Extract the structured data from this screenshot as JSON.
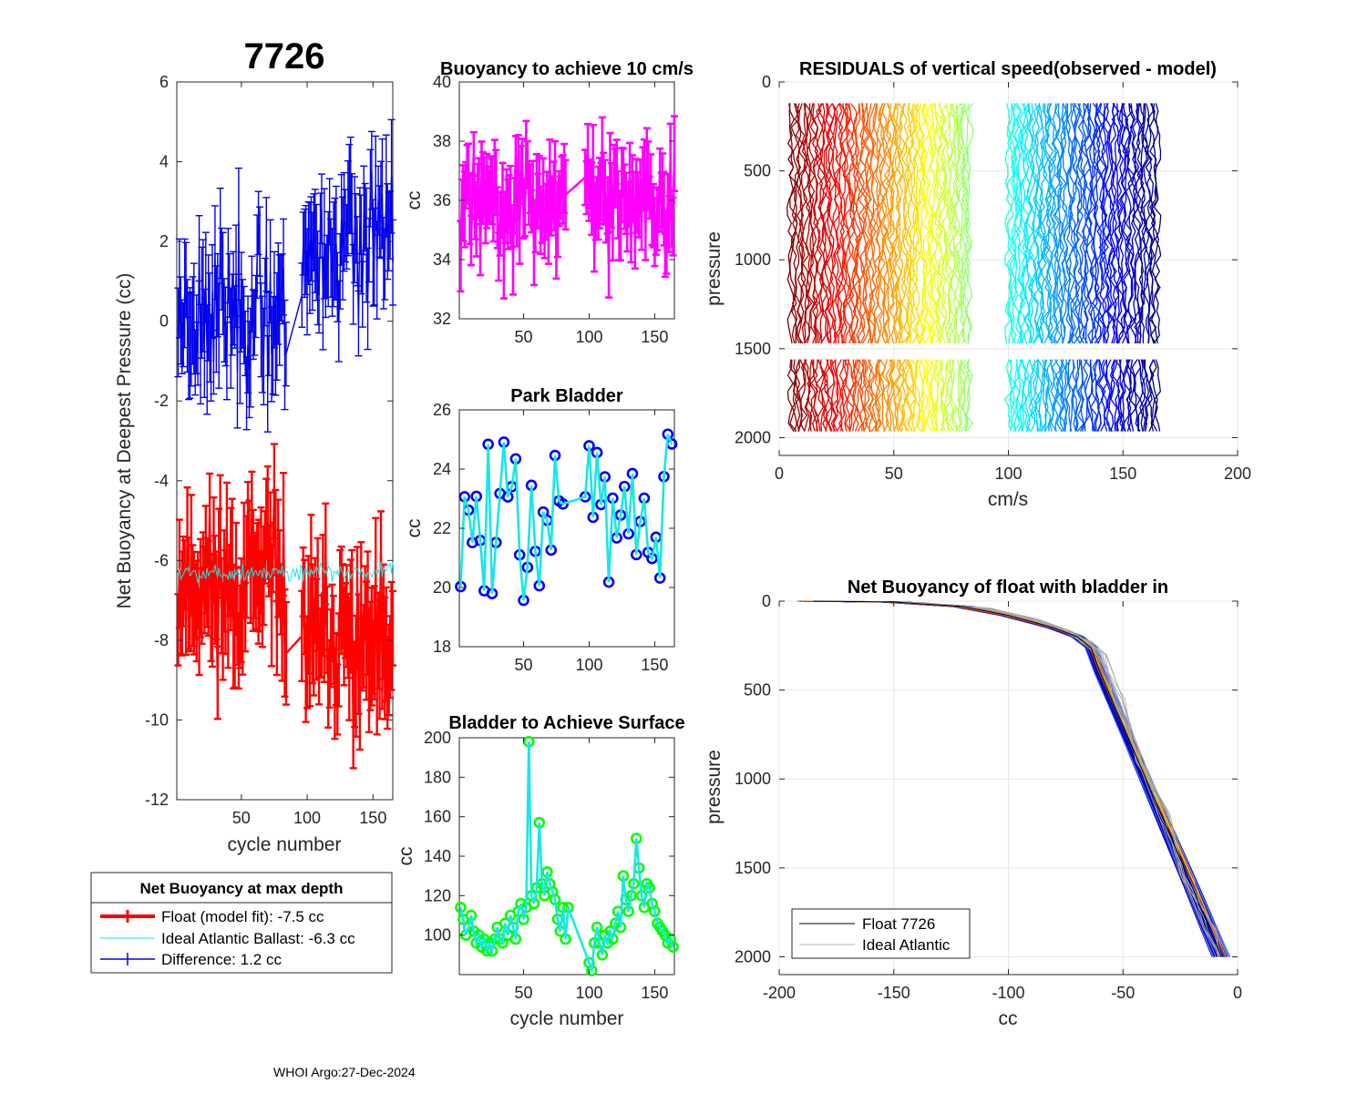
{
  "figure": {
    "float_id": "7726",
    "footer": "WHOI Argo:27-Dec-2024",
    "colors": {
      "red": "#ff0000",
      "blue": "#0000ee",
      "cyan": "#19e6e6",
      "magenta": "#ff00ff",
      "green": "#00ff00",
      "bluemark": "#0000ff",
      "grid": "#e6e6e6",
      "axis": "#262626"
    }
  },
  "chart_data": [
    {
      "id": "net_buoyancy",
      "type": "line",
      "title": "7726",
      "xlabel": "cycle number",
      "ylabel": "Net Buoyancy at Deepest Pressure (cc)",
      "xlim": [
        1,
        165
      ],
      "ylim": [
        -12,
        6
      ],
      "xticks": [
        50,
        100,
        150
      ],
      "xtick_labels": [
        "50",
        "100",
        "150"
      ],
      "yticks": [
        -12,
        -10,
        -8,
        -6,
        -4,
        -2,
        0,
        2,
        4,
        6
      ],
      "ytick_labels": [
        "-12",
        "-10",
        "-8",
        "-6",
        "-4",
        "-2",
        "0",
        "2",
        "4",
        "6"
      ],
      "series": [
        {
          "name": "Float (model fit)",
          "style": "errorbar",
          "color": "red",
          "generated": {
            "seed": 11,
            "segments": [
              [
                2,
                84
              ],
              [
                96,
                165
              ]
            ],
            "step": 1,
            "mean": [
              -6.6,
              -8.0
            ],
            "spread": 0.9,
            "err": 1.2,
            "rise": [
              0,
              -0.004
            ]
          }
        },
        {
          "name": "Ideal Atlantic Ballast",
          "style": "line",
          "color": "cyan",
          "generated": {
            "seed": 5,
            "segments": [
              [
                2,
                165
              ]
            ],
            "step": 1,
            "mean": [
              -6.3
            ],
            "spread": 0.12,
            "err": 0
          }
        },
        {
          "name": "Difference",
          "style": "errorbar",
          "color": "blue",
          "generated": {
            "seed": 23,
            "segments": [
              [
                2,
                84
              ],
              [
                96,
                165
              ]
            ],
            "step": 1,
            "mean": [
              0.3,
              1.7
            ],
            "spread": 0.9,
            "err": 1.1,
            "rise": [
              0,
              0.006
            ]
          }
        }
      ],
      "legend": {
        "title": "Net Buoyancy at max depth",
        "entries": [
          "Float (model fit):  -7.5 cc",
          "Ideal Atlantic Ballast:  -6.3 cc",
          "Difference:   1.2 cc"
        ]
      }
    },
    {
      "id": "buoyancy_10cms",
      "type": "line",
      "title": "Buoyancy to achieve 10 cm/s",
      "xlabel": "",
      "ylabel": "cc",
      "xlim": [
        1,
        165
      ],
      "ylim": [
        32,
        40
      ],
      "xticks": [
        50,
        100,
        150
      ],
      "xtick_labels": [
        "50",
        "100",
        "150"
      ],
      "yticks": [
        32,
        34,
        36,
        38,
        40
      ],
      "ytick_labels": [
        "32",
        "34",
        "36",
        "38",
        "40"
      ],
      "series": [
        {
          "name": "buoyancy",
          "style": "errorbar",
          "color": "magenta",
          "generated": {
            "seed": 31,
            "segments": [
              [
                2,
                82
              ],
              [
                97,
                165
              ]
            ],
            "step": 1,
            "mean": [
              35.9,
              36.0
            ],
            "spread": 0.8,
            "err": 1.0
          }
        }
      ]
    },
    {
      "id": "park_bladder",
      "type": "line",
      "title": "Park Bladder",
      "xlabel": "",
      "ylabel": "cc",
      "xlim": [
        1,
        165
      ],
      "ylim": [
        18,
        26
      ],
      "xticks": [
        50,
        100,
        150
      ],
      "xtick_labels": [
        "50",
        "100",
        "150"
      ],
      "yticks": [
        18,
        20,
        22,
        24,
        26
      ],
      "ytick_labels": [
        "18",
        "20",
        "22",
        "24",
        "26"
      ],
      "series": [
        {
          "name": "park bladder",
          "style": "markerline",
          "color": "cyan",
          "marker": "bluemark",
          "generated": {
            "seed": 47,
            "segments": [
              [
                2,
                82
              ],
              [
                97,
                165
              ]
            ],
            "step": 3,
            "mean": [
              22.0,
              23.0
            ],
            "spread": 1.4,
            "err": 0
          }
        }
      ]
    },
    {
      "id": "bladder_surface",
      "type": "line",
      "title": "Bladder to Achieve Surface",
      "xlabel": "cycle number",
      "ylabel": "cc",
      "xlim": [
        1,
        165
      ],
      "ylim": [
        80,
        200
      ],
      "xticks": [
        50,
        100,
        150
      ],
      "xtick_labels": [
        "50",
        "100",
        "150"
      ],
      "yticks": [
        100,
        120,
        140,
        160,
        180,
        200
      ],
      "ytick_labels": [
        "100",
        "120",
        "140",
        "160",
        "180",
        "200"
      ],
      "series": [
        {
          "name": "bladder to surface",
          "style": "markerline",
          "color": "cyan",
          "marker": "green",
          "points": [
            [
              2,
              114
            ],
            [
              4,
              108
            ],
            [
              6,
              100
            ],
            [
              8,
              104
            ],
            [
              10,
              110
            ],
            [
              12,
              102
            ],
            [
              14,
              96
            ],
            [
              16,
              100
            ],
            [
              18,
              94
            ],
            [
              20,
              98
            ],
            [
              22,
              92
            ],
            [
              24,
              96
            ],
            [
              26,
              92
            ],
            [
              28,
              98
            ],
            [
              30,
              104
            ],
            [
              32,
              98
            ],
            [
              34,
              96
            ],
            [
              36,
              106
            ],
            [
              38,
              100
            ],
            [
              40,
              110
            ],
            [
              42,
              104
            ],
            [
              44,
              98
            ],
            [
              46,
              112
            ],
            [
              48,
              116
            ],
            [
              50,
              108
            ],
            [
              52,
              114
            ],
            [
              54,
              198
            ],
            [
              56,
              120
            ],
            [
              58,
              116
            ],
            [
              60,
              124
            ],
            [
              62,
              157
            ],
            [
              64,
              126
            ],
            [
              66,
              120
            ],
            [
              68,
              132
            ],
            [
              70,
              126
            ],
            [
              72,
              122
            ],
            [
              74,
              118
            ],
            [
              76,
              108
            ],
            [
              78,
              102
            ],
            [
              80,
              114
            ],
            [
              82,
              98
            ],
            [
              84,
              114
            ],
            [
              100,
              86
            ],
            [
              102,
              82
            ],
            [
              104,
              96
            ],
            [
              106,
              104
            ],
            [
              108,
              96
            ],
            [
              110,
              90
            ],
            [
              112,
              100
            ],
            [
              114,
              96
            ],
            [
              116,
              102
            ],
            [
              118,
              98
            ],
            [
              120,
              106
            ],
            [
              122,
              112
            ],
            [
              124,
              104
            ],
            [
              126,
              130
            ],
            [
              128,
              118
            ],
            [
              130,
              112
            ],
            [
              132,
              120
            ],
            [
              134,
              126
            ],
            [
              136,
              149
            ],
            [
              138,
              134
            ],
            [
              140,
              120
            ],
            [
              142,
              114
            ],
            [
              144,
              126
            ],
            [
              146,
              124
            ],
            [
              148,
              116
            ],
            [
              150,
              112
            ],
            [
              152,
              106
            ],
            [
              154,
              104
            ],
            [
              156,
              102
            ],
            [
              158,
              100
            ],
            [
              160,
              96
            ],
            [
              162,
              98
            ],
            [
              164,
              94
            ]
          ]
        }
      ]
    },
    {
      "id": "residuals",
      "type": "line",
      "title": "RESIDUALS of vertical speed(observed - model)",
      "xlabel": "cm/s",
      "ylabel": "pressure",
      "xlim": [
        0,
        200
      ],
      "ylim": [
        0,
        2100
      ],
      "xticks": [
        0,
        50,
        100,
        150,
        200
      ],
      "xtick_labels": [
        "0",
        "50",
        "100",
        "150",
        "200"
      ],
      "yticks": [
        0,
        500,
        1000,
        1500,
        2000
      ],
      "ytick_labels": [
        "0",
        "500",
        "1000",
        "1500",
        "2000"
      ],
      "y_reversed": true,
      "series": [
        {
          "name": "profiles block 1",
          "color": "jet",
          "offset_start": 5,
          "offset_end": 83,
          "count": 82,
          "pmin": 120,
          "pmax": 2000,
          "gap_at": 1510
        },
        {
          "name": "profiles block 2",
          "color": "jet",
          "offset_start": 100,
          "offset_end": 165,
          "count": 69,
          "pmin": 120,
          "pmax": 2000,
          "gap_at": 1510
        }
      ]
    },
    {
      "id": "net_buoyancy_bladder_in",
      "type": "line",
      "title": "Net Buoyancy of float with bladder in",
      "xlabel": "cc",
      "ylabel": "pressure",
      "xlim": [
        -200,
        0
      ],
      "ylim": [
        0,
        2100
      ],
      "xticks": [
        -200,
        -150,
        -100,
        -50,
        0
      ],
      "xtick_labels": [
        "-200",
        "-150",
        "-100",
        "-50",
        "0"
      ],
      "yticks": [
        0,
        500,
        1000,
        1500,
        2000
      ],
      "ytick_labels": [
        "0",
        "500",
        "1000",
        "1500",
        "2000"
      ],
      "y_reversed": true,
      "series": [
        {
          "name": "Float 7726",
          "color": "#000000",
          "profile": [
            [
              -185,
              0
            ],
            [
              -150,
              5
            ],
            [
              -120,
              30
            ],
            [
              -100,
              80
            ],
            [
              -80,
              150
            ],
            [
              -70,
              200
            ],
            [
              -64,
              260
            ],
            [
              -60,
              400
            ],
            [
              -50,
              700
            ],
            [
              -40,
              1000
            ],
            [
              -30,
              1300
            ],
            [
              -20,
              1600
            ],
            [
              -12,
              1850
            ],
            [
              -7,
              2000
            ]
          ]
        },
        {
          "name": "Ideal Atlantic",
          "color": "#b0b0b0",
          "profile": [
            [
              -170,
              0
            ],
            [
              -140,
              8
            ],
            [
              -110,
              40
            ],
            [
              -90,
              100
            ],
            [
              -75,
              170
            ],
            [
              -66,
              230
            ],
            [
              -60,
              300
            ],
            [
              -52,
              550
            ],
            [
              -42,
              900
            ],
            [
              -32,
              1200
            ],
            [
              -22,
              1550
            ],
            [
              -12,
              1850
            ],
            [
              -6,
              2000
            ]
          ]
        }
      ],
      "legend": {
        "entries": [
          "Float 7726",
          "Ideal Atlantic"
        ]
      }
    }
  ]
}
